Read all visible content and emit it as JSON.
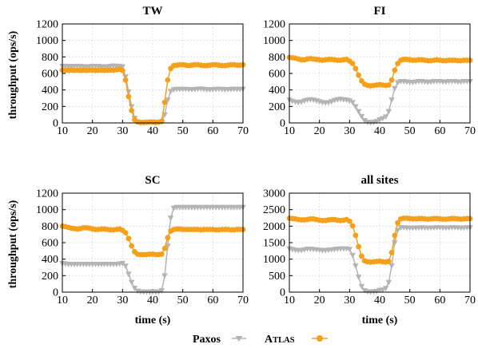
{
  "colors": {
    "Paxos": "#b4b4b4",
    "Atlas": "#f5a01a"
  },
  "legend": {
    "placement": "bottom-center",
    "paxos_label": "Paxos",
    "atlas_label_initial": "A",
    "atlas_label_rest": "TLAS"
  },
  "chart_data": [
    {
      "type": "line",
      "title": "TW",
      "xlabel": "",
      "ylabel": "throughput (ops/s)",
      "xlim": [
        10,
        70
      ],
      "ylim": [
        0,
        1200
      ],
      "xticks": [
        10,
        20,
        30,
        40,
        50,
        60,
        70
      ],
      "yticks": [
        0,
        200,
        400,
        600,
        800,
        1000,
        1200
      ],
      "grid": true,
      "x": [
        10,
        11,
        12,
        13,
        14,
        15,
        16,
        17,
        18,
        19,
        20,
        21,
        22,
        23,
        24,
        25,
        26,
        27,
        28,
        29,
        30,
        31,
        32,
        33,
        34,
        35,
        36,
        37,
        38,
        39,
        40,
        41,
        42,
        43,
        44,
        45,
        46,
        47,
        48,
        49,
        50,
        51,
        52,
        53,
        54,
        55,
        56,
        57,
        58,
        59,
        60,
        61,
        62,
        63,
        64,
        65,
        66,
        67,
        68,
        69,
        70
      ],
      "series": [
        {
          "name": "Paxos",
          "marker": "triangle-down",
          "values": [
            690,
            690,
            688,
            685,
            688,
            690,
            688,
            685,
            683,
            685,
            688,
            690,
            688,
            685,
            683,
            685,
            690,
            693,
            690,
            690,
            682,
            560,
            380,
            200,
            60,
            15,
            8,
            5,
            10,
            12,
            15,
            10,
            10,
            15,
            100,
            280,
            385,
            405,
            410,
            410,
            410,
            410,
            408,
            405,
            408,
            412,
            415,
            410,
            405,
            405,
            408,
            410,
            412,
            410,
            405,
            408,
            410,
            412,
            410,
            410,
            412
          ]
        },
        {
          "name": "Atlas",
          "marker": "circle",
          "values": [
            640,
            640,
            638,
            642,
            638,
            640,
            638,
            640,
            638,
            642,
            640,
            638,
            640,
            640,
            638,
            640,
            642,
            640,
            645,
            650,
            635,
            520,
            320,
            150,
            40,
            12,
            5,
            5,
            8,
            10,
            10,
            5,
            10,
            20,
            250,
            520,
            660,
            695,
            700,
            705,
            705,
            700,
            695,
            700,
            705,
            705,
            700,
            695,
            695,
            700,
            705,
            705,
            700,
            695,
            695,
            700,
            705,
            705,
            700,
            700,
            705
          ]
        }
      ]
    },
    {
      "type": "line",
      "title": "FI",
      "xlabel": "",
      "ylabel": "",
      "xlim": [
        10,
        70
      ],
      "ylim": [
        0,
        1200
      ],
      "xticks": [
        10,
        20,
        30,
        40,
        50,
        60,
        70
      ],
      "yticks": [
        0,
        200,
        400,
        600,
        800,
        1000,
        1200
      ],
      "grid": true,
      "x": [
        10,
        11,
        12,
        13,
        14,
        15,
        16,
        17,
        18,
        19,
        20,
        21,
        22,
        23,
        24,
        25,
        26,
        27,
        28,
        29,
        30,
        31,
        32,
        33,
        34,
        35,
        36,
        37,
        38,
        39,
        40,
        41,
        42,
        43,
        44,
        45,
        46,
        47,
        48,
        49,
        50,
        51,
        52,
        53,
        54,
        55,
        56,
        57,
        58,
        59,
        60,
        61,
        62,
        63,
        64,
        65,
        66,
        67,
        68,
        69,
        70
      ],
      "series": [
        {
          "name": "Paxos",
          "marker": "triangle-down",
          "values": [
            280,
            265,
            255,
            250,
            255,
            270,
            280,
            285,
            280,
            270,
            260,
            250,
            245,
            250,
            260,
            275,
            285,
            290,
            285,
            280,
            270,
            250,
            200,
            140,
            80,
            30,
            10,
            5,
            10,
            20,
            40,
            55,
            75,
            140,
            280,
            420,
            490,
            505,
            505,
            500,
            495,
            495,
            500,
            505,
            505,
            500,
            495,
            500,
            505,
            505,
            505,
            500,
            500,
            505,
            505,
            505,
            500,
            500,
            505,
            505,
            505
          ]
        },
        {
          "name": "Atlas",
          "marker": "circle",
          "values": [
            795,
            790,
            785,
            775,
            765,
            765,
            775,
            780,
            775,
            770,
            765,
            760,
            765,
            770,
            770,
            765,
            760,
            760,
            765,
            770,
            750,
            720,
            660,
            580,
            510,
            470,
            455,
            450,
            455,
            460,
            465,
            460,
            455,
            460,
            520,
            640,
            720,
            760,
            770,
            770,
            765,
            760,
            760,
            765,
            765,
            760,
            755,
            755,
            760,
            765,
            760,
            755,
            755,
            760,
            760,
            760,
            755,
            755,
            760,
            760,
            760
          ]
        }
      ]
    },
    {
      "type": "line",
      "title": "SC",
      "xlabel": "time (s)",
      "ylabel": "throughput (ops/s)",
      "xlim": [
        10,
        70
      ],
      "ylim": [
        0,
        1200
      ],
      "xticks": [
        10,
        20,
        30,
        40,
        50,
        60,
        70
      ],
      "yticks": [
        0,
        200,
        400,
        600,
        800,
        1000,
        1200
      ],
      "grid": true,
      "x": [
        10,
        11,
        12,
        13,
        14,
        15,
        16,
        17,
        18,
        19,
        20,
        21,
        22,
        23,
        24,
        25,
        26,
        27,
        28,
        29,
        30,
        31,
        32,
        33,
        34,
        35,
        36,
        37,
        38,
        39,
        40,
        41,
        42,
        43,
        44,
        45,
        46,
        47,
        48,
        49,
        50,
        51,
        52,
        53,
        54,
        55,
        56,
        57,
        58,
        59,
        60,
        61,
        62,
        63,
        64,
        65,
        66,
        67,
        68,
        69,
        70
      ],
      "series": [
        {
          "name": "Paxos",
          "marker": "triangle-down",
          "values": [
            350,
            345,
            340,
            340,
            340,
            340,
            340,
            340,
            340,
            340,
            340,
            340,
            340,
            340,
            340,
            340,
            340,
            340,
            340,
            345,
            350,
            320,
            220,
            120,
            50,
            15,
            5,
            5,
            5,
            5,
            5,
            5,
            5,
            20,
            200,
            560,
            900,
            1020,
            1030,
            1030,
            1030,
            1030,
            1030,
            1030,
            1030,
            1030,
            1030,
            1030,
            1030,
            1030,
            1030,
            1030,
            1030,
            1030,
            1030,
            1030,
            1030,
            1030,
            1030,
            1030,
            1030
          ]
        },
        {
          "name": "Atlas",
          "marker": "circle",
          "values": [
            800,
            795,
            785,
            775,
            770,
            765,
            770,
            780,
            780,
            775,
            765,
            760,
            760,
            765,
            765,
            760,
            755,
            755,
            760,
            765,
            750,
            720,
            650,
            560,
            490,
            460,
            455,
            455,
            455,
            460,
            460,
            455,
            455,
            460,
            530,
            660,
            740,
            760,
            765,
            765,
            760,
            760,
            760,
            760,
            760,
            760,
            755,
            760,
            760,
            760,
            760,
            755,
            755,
            760,
            760,
            760,
            755,
            755,
            760,
            760,
            760
          ]
        }
      ]
    },
    {
      "type": "line",
      "title": "all sites",
      "xlabel": "time (s)",
      "ylabel": "",
      "xlim": [
        10,
        70
      ],
      "ylim": [
        0,
        3000
      ],
      "xticks": [
        10,
        20,
        30,
        40,
        50,
        60,
        70
      ],
      "yticks": [
        0,
        500,
        1000,
        1500,
        2000,
        2500,
        3000
      ],
      "grid": true,
      "x": [
        10,
        11,
        12,
        13,
        14,
        15,
        16,
        17,
        18,
        19,
        20,
        21,
        22,
        23,
        24,
        25,
        26,
        27,
        28,
        29,
        30,
        31,
        32,
        33,
        34,
        35,
        36,
        37,
        38,
        39,
        40,
        41,
        42,
        43,
        44,
        45,
        46,
        47,
        48,
        49,
        50,
        51,
        52,
        53,
        54,
        55,
        56,
        57,
        58,
        59,
        60,
        61,
        62,
        63,
        64,
        65,
        66,
        67,
        68,
        69,
        70
      ],
      "series": [
        {
          "name": "Paxos",
          "marker": "triangle-down",
          "values": [
            1320,
            1300,
            1280,
            1270,
            1270,
            1290,
            1310,
            1310,
            1300,
            1290,
            1280,
            1270,
            1270,
            1280,
            1290,
            1300,
            1310,
            1320,
            1320,
            1320,
            1300,
            1120,
            800,
            460,
            180,
            50,
            20,
            10,
            20,
            30,
            60,
            70,
            120,
            300,
            800,
            1500,
            1880,
            1960,
            1960,
            1950,
            1950,
            1950,
            1950,
            1955,
            1960,
            1955,
            1950,
            1950,
            1955,
            1960,
            1960,
            1955,
            1950,
            1955,
            1960,
            1960,
            1955,
            1950,
            1955,
            1960,
            1960
          ]
        },
        {
          "name": "Atlas",
          "marker": "circle",
          "values": [
            2240,
            2230,
            2220,
            2200,
            2190,
            2190,
            2200,
            2220,
            2220,
            2200,
            2180,
            2170,
            2170,
            2190,
            2200,
            2200,
            2180,
            2170,
            2180,
            2200,
            2150,
            2010,
            1720,
            1380,
            1090,
            950,
            920,
            910,
            920,
            930,
            940,
            920,
            910,
            930,
            1200,
            1720,
            2100,
            2220,
            2240,
            2240,
            2230,
            2220,
            2220,
            2230,
            2230,
            2220,
            2210,
            2220,
            2230,
            2230,
            2220,
            2210,
            2210,
            2220,
            2230,
            2230,
            2220,
            2210,
            2220,
            2230,
            2230
          ]
        }
      ]
    }
  ]
}
